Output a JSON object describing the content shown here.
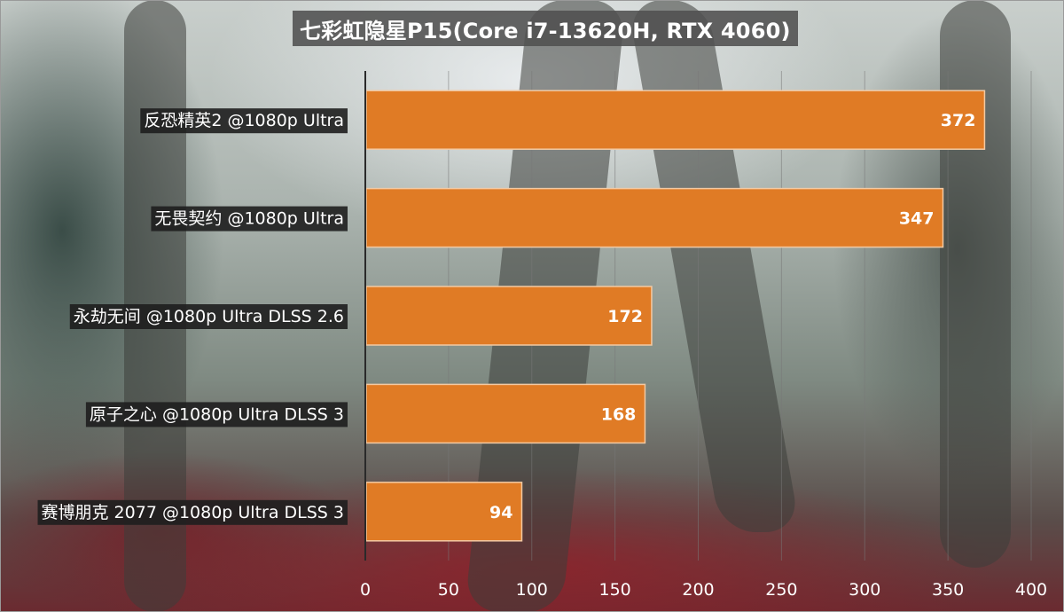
{
  "chart_data": {
    "type": "bar",
    "orientation": "horizontal",
    "title": "七彩虹隐星P15(Core i7-13620H, RTX 4060)",
    "categories": [
      "反恐精英2 @1080p Ultra",
      "无畏契约 @1080p Ultra",
      "永劫无间 @1080p Ultra DLSS 2.6",
      "原子之心 @1080p Ultra DLSS 3",
      "赛博朋克 2077 @1080p Ultra DLSS 3"
    ],
    "values": [
      372,
      347,
      172,
      168,
      94
    ],
    "xlim": [
      0,
      400
    ],
    "xticks": [
      0,
      50,
      100,
      150,
      200,
      250,
      300,
      350,
      400
    ],
    "grid": true,
    "bar_color": "#e07b25",
    "label_color": "#ffffff",
    "category_label_background": "#1e1e1e"
  }
}
